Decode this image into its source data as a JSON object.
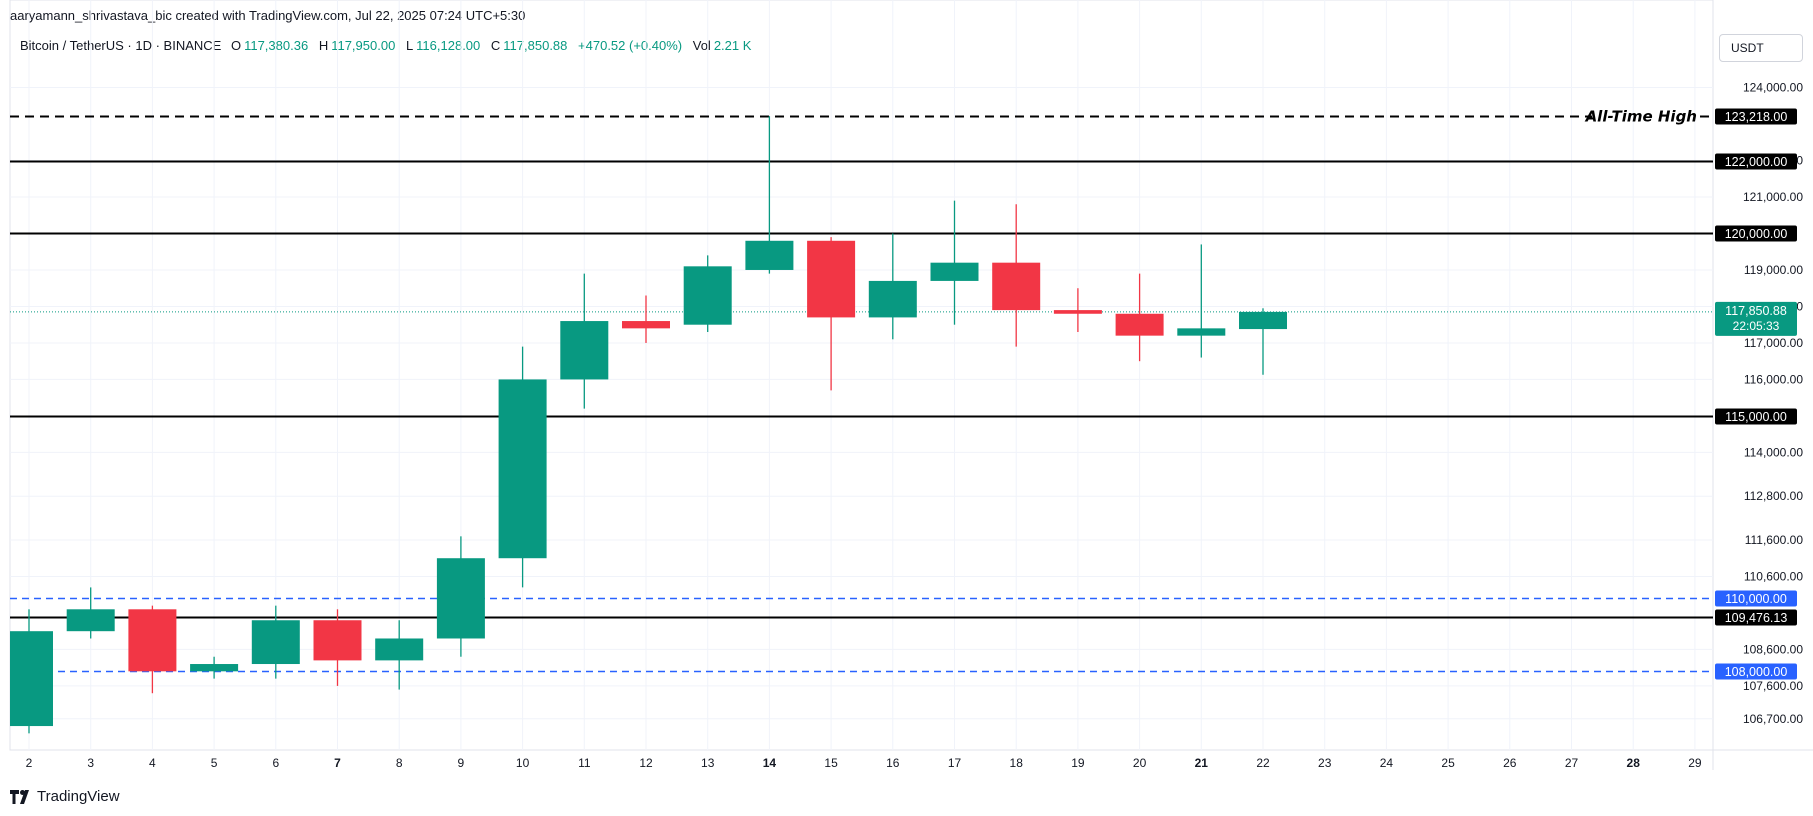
{
  "byline": "aaryamann_shrivastava_bic created with TradingView.com, Jul 22, 2025 07:24 UTC+5:30",
  "legend": {
    "symbol": "Bitcoin / TetherUS · 1D · BINANCE",
    "o_label": "O",
    "o_value": "117,380.36",
    "h_label": "H",
    "h_value": "117,950.00",
    "l_label": "L",
    "l_value": "116,128.00",
    "c_label": "C",
    "c_value": "117,850.88",
    "change": "+470.52 (+0.40%)",
    "vol_label": "Vol",
    "vol_value": "2.21 K"
  },
  "currency_button": "USDT",
  "footer_logo_text": "TradingView",
  "colors": {
    "up": "#089981",
    "down": "#f23645",
    "level": "#000000",
    "support": "#2962ff",
    "grid": "#f0f3fa",
    "text": "#131722"
  },
  "chart_data": {
    "type": "candlestick",
    "x_ticks": [
      "2",
      "3",
      "4",
      "5",
      "6",
      "7",
      "8",
      "9",
      "10",
      "11",
      "12",
      "13",
      "14",
      "15",
      "16",
      "17",
      "18",
      "19",
      "20",
      "21",
      "22",
      "23",
      "24",
      "25",
      "26",
      "27",
      "28",
      "29"
    ],
    "x_ticks_bold": [
      "7",
      "14",
      "21",
      "28"
    ],
    "y_ticks": [
      "124,000.00",
      "122,000.00",
      "121,000.00",
      "119,000.00",
      "118,000.00",
      "117,000.00",
      "116,000.00",
      "114,000.00",
      "112,800.00",
      "111,600.00",
      "110,600.00",
      "108,600.00",
      "107,600.00",
      "106,700.00"
    ],
    "ylim": [
      106200,
      124700
    ],
    "candles": [
      {
        "day": "2",
        "o": 106500,
        "h": 109700,
        "l": 106300,
        "c": 109100
      },
      {
        "day": "3",
        "o": 109100,
        "h": 110300,
        "l": 108900,
        "c": 109700
      },
      {
        "day": "4",
        "o": 109700,
        "h": 109800,
        "l": 107400,
        "c": 108000
      },
      {
        "day": "5",
        "o": 108000,
        "h": 108400,
        "l": 107800,
        "c": 108200
      },
      {
        "day": "6",
        "o": 108200,
        "h": 109800,
        "l": 107800,
        "c": 109400
      },
      {
        "day": "7",
        "o": 109400,
        "h": 109700,
        "l": 107600,
        "c": 108300
      },
      {
        "day": "8",
        "o": 108300,
        "h": 109400,
        "l": 107500,
        "c": 108900
      },
      {
        "day": "9",
        "o": 108900,
        "h": 111700,
        "l": 108400,
        "c": 111100
      },
      {
        "day": "10",
        "o": 111100,
        "h": 116900,
        "l": 110300,
        "c": 116000
      },
      {
        "day": "11",
        "o": 116000,
        "h": 118900,
        "l": 115200,
        "c": 117600
      },
      {
        "day": "12",
        "o": 117600,
        "h": 118300,
        "l": 117000,
        "c": 117400
      },
      {
        "day": "13",
        "o": 117500,
        "h": 119400,
        "l": 117300,
        "c": 119100
      },
      {
        "day": "14",
        "o": 119000,
        "h": 123218,
        "l": 118900,
        "c": 119800
      },
      {
        "day": "15",
        "o": 119800,
        "h": 119900,
        "l": 115700,
        "c": 117700
      },
      {
        "day": "16",
        "o": 117700,
        "h": 120000,
        "l": 117100,
        "c": 118700
      },
      {
        "day": "17",
        "o": 118700,
        "h": 120900,
        "l": 117500,
        "c": 119200
      },
      {
        "day": "18",
        "o": 119200,
        "h": 120800,
        "l": 116900,
        "c": 117900
      },
      {
        "day": "19",
        "o": 117900,
        "h": 118500,
        "l": 117300,
        "c": 117800
      },
      {
        "day": "20",
        "o": 117800,
        "h": 118900,
        "l": 116500,
        "c": 117200
      },
      {
        "day": "21",
        "o": 117200,
        "h": 119700,
        "l": 116600,
        "c": 117400
      },
      {
        "day": "22",
        "o": 117380.36,
        "h": 117950.0,
        "l": 116128.0,
        "c": 117850.88
      }
    ],
    "levels": [
      {
        "value": 123218,
        "label": "123,218.00",
        "style": "dashed",
        "color": "#000000",
        "annotation": "All-Time High"
      },
      {
        "value": 122000,
        "label": "122,000.00",
        "style": "solid",
        "color": "#000000"
      },
      {
        "value": 120000,
        "label": "120,000.00",
        "style": "solid",
        "color": "#000000"
      },
      {
        "value": 115000,
        "label": "115,000.00",
        "style": "solid",
        "color": "#000000"
      },
      {
        "value": 110000,
        "label": "110,000.00",
        "style": "dashed",
        "color": "#2962ff"
      },
      {
        "value": 109476.13,
        "label": "109,476.13",
        "style": "solid",
        "color": "#000000"
      },
      {
        "value": 108000,
        "label": "108,000.00",
        "style": "dashed",
        "color": "#2962ff"
      }
    ],
    "last_price": {
      "value": 117850.88,
      "label": "117,850.88",
      "countdown": "22:05:33"
    }
  }
}
